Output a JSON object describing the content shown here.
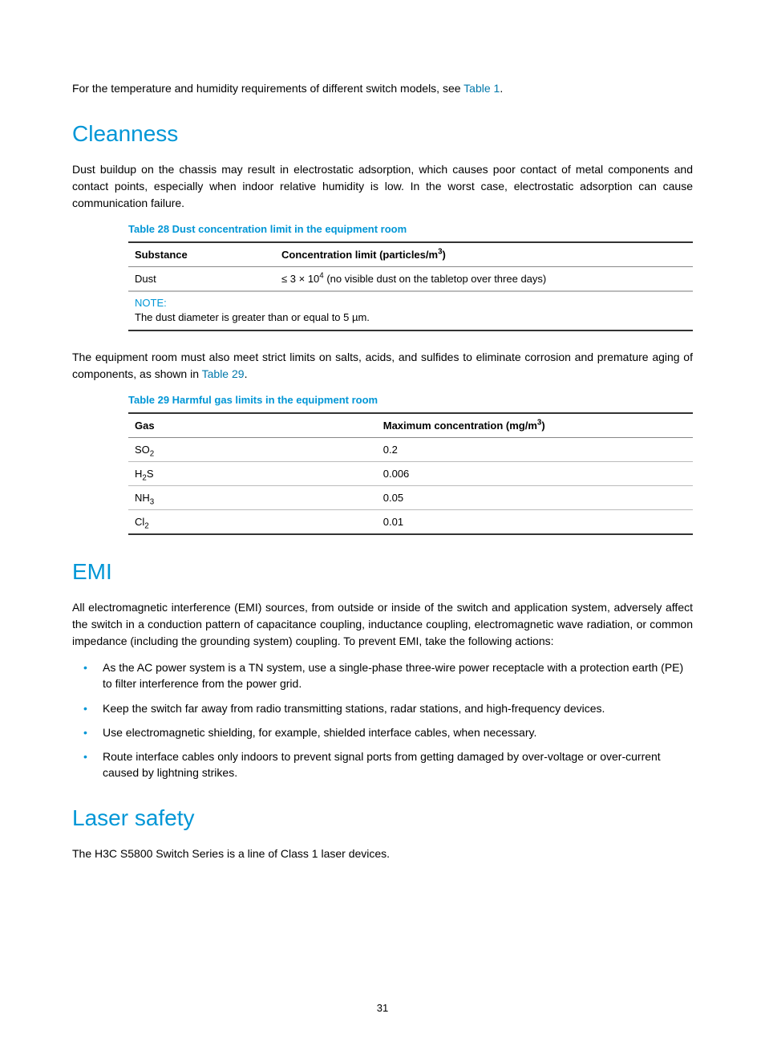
{
  "colors": {
    "accent": "#0096d6",
    "link": "#0077aa",
    "text": "#000000",
    "background": "#ffffff",
    "table_rule_major": "#333333",
    "table_rule_minor": "#bbbbbb"
  },
  "typography": {
    "body_family": "Arial, Helvetica, sans-serif",
    "body_size_pt": 14,
    "heading_size_pt": 28,
    "caption_size_pt": 13,
    "table_size_pt": 13
  },
  "intro_text": {
    "pre": "For the temperature and humidity requirements of different switch models, see ",
    "link": "Table 1",
    "post": "."
  },
  "cleanness": {
    "heading": "Cleanness",
    "para1": "Dust buildup on the chassis may result in electrostatic adsorption, which causes poor contact of metal components and contact points, especially when indoor relative humidity is low. In the worst case, electrostatic adsorption can cause communication failure.",
    "table28": {
      "caption": "Table 28 Dust concentration limit in the equipment room",
      "col1_header": "Substance",
      "col2_header_html": "Concentration limit (particles/m<sup>3</sup>)",
      "row": {
        "substance": "Dust",
        "limit_html": "≤ 3 × 10<sup>4</sup> (no visible dust on the tabletop over three days)"
      },
      "note_label": "NOTE:",
      "note_text": "The dust diameter is greater than or equal to 5 µm.",
      "col_widths": [
        "26%",
        "74%"
      ]
    },
    "para2": {
      "pre": "The equipment room must also meet strict limits on salts, acids, and sulfides to eliminate corrosion and premature aging of components, as shown in ",
      "link": "Table 29",
      "post": "."
    },
    "table29": {
      "caption": "Table 29 Harmful gas limits in the equipment room",
      "col1_header": "Gas",
      "col2_header_html": "Maximum concentration (mg/m<sup>3</sup>)",
      "rows": [
        {
          "gas_html": "SO<sub>2</sub>",
          "value": "0.2"
        },
        {
          "gas_html": "H<sub>2</sub>S",
          "value": "0.006"
        },
        {
          "gas_html": "NH<sub>3</sub>",
          "value": "0.05"
        },
        {
          "gas_html": "Cl<sub>2</sub>",
          "value": "0.01"
        }
      ],
      "col_widths": [
        "44%",
        "56%"
      ]
    }
  },
  "emi": {
    "heading": "EMI",
    "para1": "All electromagnetic interference (EMI) sources, from outside or inside of the switch and application system, adversely affect the switch in a conduction pattern of capacitance coupling, inductance coupling, electromagnetic wave radiation, or common impedance (including the grounding system) coupling. To prevent EMI, take the following actions:",
    "bullets": [
      "As the AC power system is a TN system, use a single-phase three-wire power receptacle with a protection earth (PE) to filter interference from the power grid.",
      "Keep the switch far away from radio transmitting stations, radar stations, and high-frequency devices.",
      "Use electromagnetic shielding, for example, shielded interface cables, when necessary.",
      "Route interface cables only indoors to prevent signal ports from getting damaged by over-voltage or over-current caused by lightning strikes."
    ]
  },
  "laser": {
    "heading": "Laser safety",
    "para1": "The H3C S5800 Switch Series is a line of Class 1 laser devices."
  },
  "page_number": "31"
}
